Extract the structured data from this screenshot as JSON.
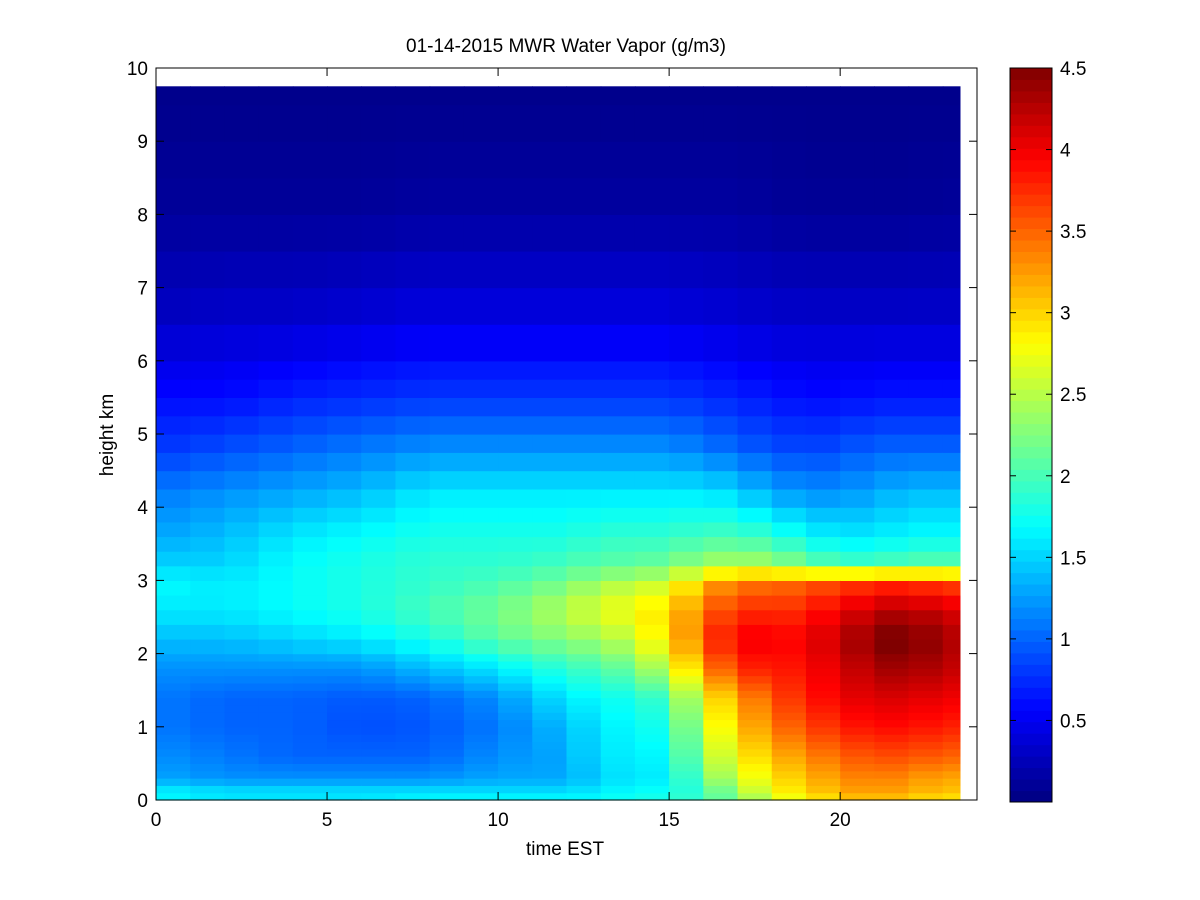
{
  "chart_data": {
    "type": "heatmap",
    "title": "01-14-2015 MWR Water Vapor (g/m3)",
    "xlabel": "time EST",
    "ylabel": "height km",
    "xlim": [
      0,
      24
    ],
    "ylim": [
      0,
      10
    ],
    "xticks": [
      0,
      5,
      10,
      15,
      20
    ],
    "yticks": [
      0,
      1,
      2,
      3,
      4,
      5,
      6,
      7,
      8,
      9,
      10
    ],
    "colormap": "jet",
    "clim": [
      0,
      4.5
    ],
    "colorbar_ticks": [
      0.5,
      1,
      1.5,
      2,
      2.5,
      3,
      3.5,
      4,
      4.5
    ],
    "time_columns": [
      0,
      1,
      2,
      3,
      4,
      5,
      6,
      7,
      8,
      9,
      10,
      11,
      12,
      13,
      14,
      15,
      16,
      17,
      18,
      19,
      20,
      21,
      22,
      23,
      23.5
    ],
    "height_levels_km": [
      0,
      0.1,
      0.2,
      0.3,
      0.4,
      0.5,
      0.6,
      0.7,
      0.8,
      0.9,
      1.0,
      1.1,
      1.2,
      1.3,
      1.4,
      1.5,
      1.6,
      1.7,
      1.8,
      1.9,
      2.0,
      2.2,
      2.4,
      2.6,
      2.8,
      3.0,
      3.2,
      3.4,
      3.6,
      3.8,
      4.0,
      4.25,
      4.5,
      4.75,
      5.0,
      5.25,
      5.5,
      5.75,
      6.0,
      6.5,
      7.0,
      7.5,
      8.0,
      8.5,
      9.0,
      9.5,
      9.75
    ],
    "profile_keys": {
      "heights_km": [
        0,
        0.15,
        0.3,
        0.6,
        1.0,
        1.4,
        1.8,
        2.2,
        2.6,
        3.0,
        3.2,
        3.6,
        4.2,
        4.8,
        5.5,
        6.5,
        8.0,
        9.75
      ],
      "columns": [
        {
          "time": 0,
          "values": [
            1.7,
            1.6,
            1.3,
            1.2,
            1.1,
            1.1,
            1.2,
            1.4,
            1.6,
            1.7,
            1.5,
            1.3,
            1.1,
            0.8,
            0.6,
            0.3,
            0.12,
            0.05
          ]
        },
        {
          "time": 2,
          "values": [
            1.6,
            1.5,
            1.2,
            1.1,
            1.0,
            1.0,
            1.2,
            1.4,
            1.6,
            1.6,
            1.5,
            1.4,
            1.2,
            0.9,
            0.6,
            0.35,
            0.12,
            0.05
          ]
        },
        {
          "time": 4,
          "values": [
            1.6,
            1.5,
            1.2,
            1.0,
            1.0,
            1.0,
            1.2,
            1.5,
            1.7,
            1.7,
            1.7,
            1.6,
            1.3,
            1.0,
            0.7,
            0.35,
            0.12,
            0.05
          ]
        },
        {
          "time": 6,
          "values": [
            1.6,
            1.5,
            1.2,
            1.0,
            0.9,
            0.95,
            1.2,
            1.6,
            1.8,
            1.8,
            1.8,
            1.7,
            1.4,
            1.1,
            0.75,
            0.4,
            0.12,
            0.05
          ]
        },
        {
          "time": 8,
          "values": [
            1.7,
            1.5,
            1.2,
            1.0,
            0.95,
            1.0,
            1.4,
            1.8,
            2.0,
            1.9,
            1.9,
            1.8,
            1.6,
            1.2,
            0.8,
            0.45,
            0.15,
            0.05
          ]
        },
        {
          "time": 10,
          "values": [
            1.7,
            1.5,
            1.3,
            1.2,
            1.1,
            1.2,
            1.6,
            2.1,
            2.2,
            2.0,
            1.9,
            1.8,
            1.6,
            1.2,
            0.8,
            0.45,
            0.15,
            0.05
          ]
        },
        {
          "time": 12,
          "values": [
            1.7,
            1.5,
            1.3,
            1.3,
            1.4,
            1.6,
            1.9,
            2.3,
            2.5,
            2.2,
            2.0,
            1.8,
            1.6,
            1.2,
            0.8,
            0.45,
            0.15,
            0.05
          ]
        },
        {
          "time": 13,
          "values": [
            1.7,
            1.6,
            1.5,
            1.6,
            1.6,
            1.7,
            2.0,
            2.4,
            2.7,
            2.4,
            2.1,
            1.9,
            1.6,
            1.2,
            0.8,
            0.45,
            0.15,
            0.05
          ]
        },
        {
          "time": 14,
          "values": [
            1.8,
            1.7,
            1.6,
            1.6,
            1.7,
            1.8,
            2.2,
            2.6,
            2.8,
            2.5,
            2.1,
            1.9,
            1.6,
            1.2,
            0.8,
            0.45,
            0.15,
            0.05
          ]
        },
        {
          "time": 15,
          "values": [
            1.8,
            1.7,
            1.6,
            1.7,
            1.8,
            2.0,
            2.6,
            3.0,
            3.0,
            2.6,
            2.2,
            1.9,
            1.6,
            1.2,
            0.8,
            0.45,
            0.15,
            0.05
          ]
        },
        {
          "time": 16,
          "values": [
            2.0,
            2.0,
            2.2,
            2.4,
            2.6,
            2.8,
            3.2,
            3.5,
            3.4,
            3.1,
            2.4,
            2.0,
            1.6,
            1.1,
            0.75,
            0.4,
            0.15,
            0.05
          ]
        },
        {
          "time": 17,
          "values": [
            2.2,
            2.4,
            2.6,
            2.8,
            3.0,
            3.2,
            3.8,
            4.1,
            3.8,
            3.4,
            2.5,
            2.0,
            1.5,
            1.0,
            0.7,
            0.4,
            0.15,
            0.05
          ]
        },
        {
          "time": 18,
          "values": [
            2.6,
            2.8,
            2.9,
            3.1,
            3.4,
            3.6,
            3.8,
            3.9,
            3.7,
            3.4,
            2.4,
            1.9,
            1.3,
            0.9,
            0.65,
            0.35,
            0.12,
            0.05
          ]
        },
        {
          "time": 19,
          "values": [
            2.8,
            3.0,
            3.1,
            3.3,
            3.6,
            3.8,
            3.9,
            4.0,
            3.8,
            3.5,
            2.2,
            1.7,
            1.2,
            0.85,
            0.6,
            0.35,
            0.1,
            0.05
          ]
        },
        {
          "time": 20,
          "values": [
            3.0,
            3.2,
            3.3,
            3.5,
            3.8,
            4.0,
            4.1,
            4.2,
            4.0,
            3.6,
            2.0,
            1.6,
            1.2,
            0.9,
            0.6,
            0.35,
            0.1,
            0.05
          ]
        },
        {
          "time": 21,
          "values": [
            3.1,
            3.3,
            3.4,
            3.6,
            3.9,
            4.1,
            4.3,
            4.5,
            4.2,
            3.7,
            2.0,
            1.6,
            1.3,
            1.0,
            0.65,
            0.35,
            0.1,
            0.05
          ]
        },
        {
          "time": 22,
          "values": [
            3.0,
            3.2,
            3.3,
            3.6,
            3.9,
            4.1,
            4.4,
            4.6,
            4.3,
            3.7,
            2.1,
            1.7,
            1.4,
            1.0,
            0.65,
            0.35,
            0.1,
            0.05
          ]
        },
        {
          "time": 23,
          "values": [
            2.9,
            3.1,
            3.2,
            3.5,
            3.8,
            4.0,
            4.2,
            4.3,
            4.1,
            3.6,
            2.1,
            1.7,
            1.4,
            1.0,
            0.65,
            0.35,
            0.12,
            0.05
          ]
        }
      ]
    },
    "data_extent": {
      "x": [
        0,
        23.5
      ],
      "y": [
        0,
        9.75
      ]
    }
  }
}
